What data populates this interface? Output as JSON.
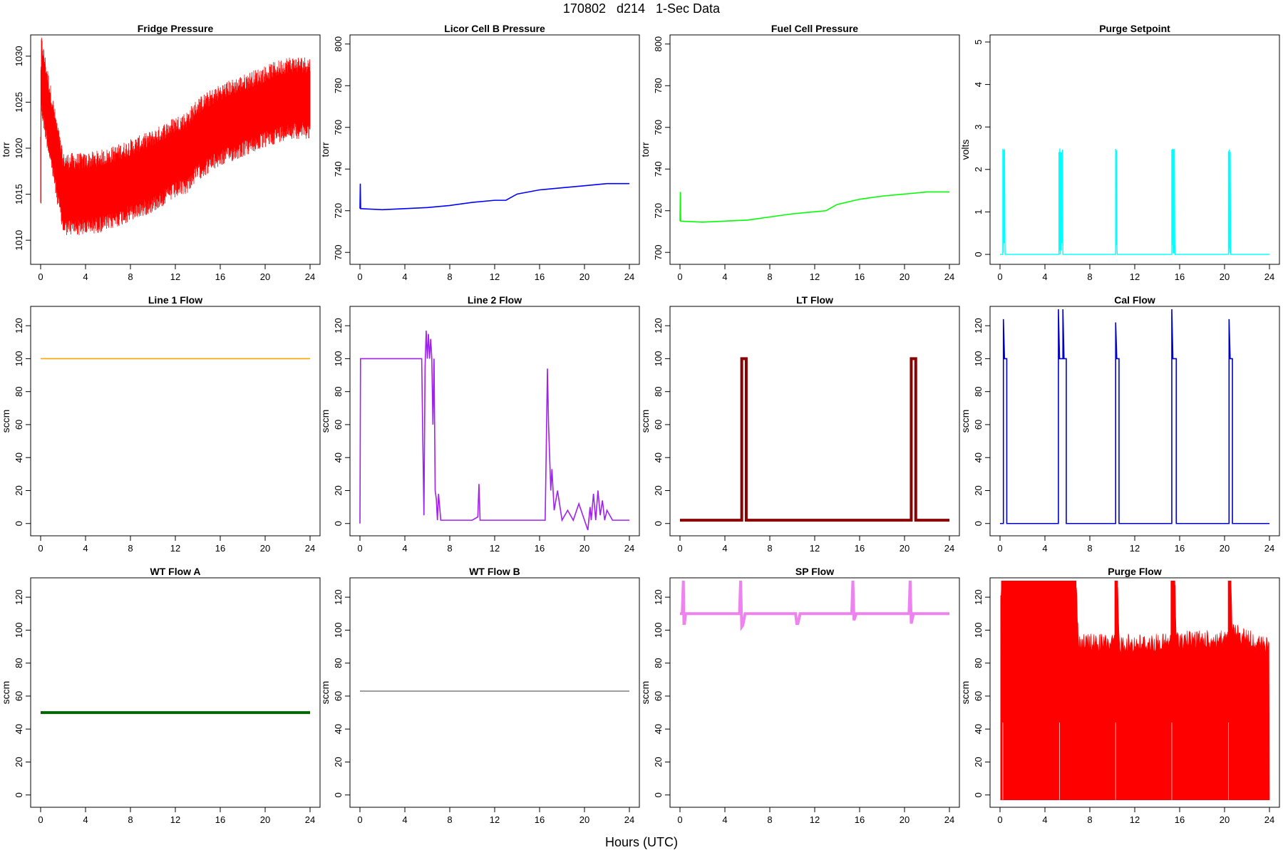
{
  "page": {
    "title": "170802   d214   1-Sec Data",
    "xlabel": "Hours (UTC)"
  },
  "chart_data": [
    {
      "type": "line",
      "title": "Fridge Pressure",
      "ylabel": "torr",
      "color": "#ff0000",
      "xlim": [
        0,
        24
      ],
      "ylim": [
        1008,
        1032
      ],
      "xticks": [
        0,
        4,
        8,
        12,
        16,
        20,
        24
      ],
      "yticks": [
        1010,
        1015,
        1020,
        1025,
        1030
      ],
      "style": "noisy",
      "series": [
        {
          "x": [
            0,
            0.05,
            2,
            4,
            6,
            8,
            10,
            12,
            13,
            14,
            16,
            18,
            20,
            22,
            24
          ],
          "y": [
            1018,
            1028,
            1015,
            1015,
            1015.5,
            1016.5,
            1017.5,
            1019,
            1019.5,
            1021,
            1022.5,
            1023.5,
            1024.5,
            1025.5,
            1025.5
          ]
        }
      ],
      "band": [
        -4.5,
        4.5
      ]
    },
    {
      "type": "line",
      "title": "Licor Cell B Pressure",
      "ylabel": "torr",
      "color": "#0000ff",
      "xlim": [
        0,
        24
      ],
      "ylim": [
        697,
        803
      ],
      "xticks": [
        0,
        4,
        8,
        12,
        16,
        20,
        24
      ],
      "yticks": [
        700,
        720,
        740,
        760,
        780,
        800
      ],
      "style": "line",
      "series": [
        {
          "x": [
            0,
            0.03,
            0.06,
            2,
            4,
            6,
            8,
            10,
            12,
            13,
            14,
            16,
            18,
            20,
            22,
            24
          ],
          "y": [
            721,
            733,
            721,
            720.5,
            721,
            721.5,
            722.5,
            724,
            725,
            725,
            728,
            730,
            731,
            732,
            733,
            733
          ]
        }
      ]
    },
    {
      "type": "line",
      "title": "Fuel Cell Pressure",
      "ylabel": "torr",
      "color": "#00ff00",
      "xlim": [
        0,
        24
      ],
      "ylim": [
        697,
        803
      ],
      "xticks": [
        0,
        4,
        8,
        12,
        16,
        20,
        24
      ],
      "yticks": [
        700,
        720,
        740,
        760,
        780,
        800
      ],
      "style": "line",
      "series": [
        {
          "x": [
            0,
            0.03,
            0.06,
            2,
            4,
            6,
            8,
            10,
            12,
            13,
            14,
            16,
            18,
            20,
            22,
            24
          ],
          "y": [
            715,
            729,
            715,
            714.5,
            715,
            715.5,
            717,
            718.5,
            719.5,
            720,
            723,
            725.5,
            727,
            728,
            729,
            729
          ]
        }
      ]
    },
    {
      "type": "line",
      "title": "Purge Setpoint",
      "ylabel": "volts",
      "color": "#00ffff",
      "xlim": [
        0,
        24
      ],
      "ylim": [
        -0.1,
        5.1
      ],
      "xticks": [
        0,
        4,
        8,
        12,
        16,
        20,
        24
      ],
      "yticks": [
        0,
        1,
        2,
        3,
        4,
        5
      ],
      "style": "pulses",
      "baseline": 0,
      "high": 2.5,
      "pulses": [
        [
          0.25,
          0.45
        ],
        [
          5.25,
          5.6
        ],
        [
          10.3,
          10.45
        ],
        [
          15.3,
          15.6
        ],
        [
          20.35,
          20.55
        ]
      ]
    },
    {
      "type": "line",
      "title": "Line 1 Flow",
      "ylabel": "sccm",
      "color": "#ffa500",
      "xlim": [
        0,
        24
      ],
      "ylim": [
        -4,
        130
      ],
      "xticks": [
        0,
        4,
        8,
        12,
        16,
        20,
        24
      ],
      "yticks": [
        0,
        20,
        40,
        60,
        80,
        100,
        120
      ],
      "style": "line",
      "series": [
        {
          "x": [
            0,
            24
          ],
          "y": [
            100,
            100
          ]
        }
      ]
    },
    {
      "type": "line",
      "title": "Line 2 Flow",
      "ylabel": "sccm",
      "color": "#a020f0",
      "xlim": [
        0,
        24
      ],
      "ylim": [
        -4,
        130
      ],
      "xticks": [
        0,
        4,
        8,
        12,
        16,
        20,
        24
      ],
      "yticks": [
        0,
        20,
        40,
        60,
        80,
        100,
        120
      ],
      "style": "line",
      "series": [
        {
          "x": [
            0,
            0.05,
            0.1,
            5.5,
            5.6,
            5.7,
            5.8,
            5.9,
            6.0,
            6.1,
            6.2,
            6.3,
            6.4,
            6.5,
            6.6,
            6.7,
            6.8,
            6.9,
            7.0,
            7.2,
            8,
            10,
            10.5,
            10.6,
            10.7,
            11,
            12,
            14,
            16,
            16.5,
            16.7,
            16.8,
            16.9,
            17.0,
            17.1,
            17.3,
            17.6,
            18,
            18.5,
            19,
            19.5,
            20,
            20.3,
            20.5,
            20.6,
            20.8,
            21,
            21.2,
            21.4,
            21.6,
            21.8,
            22,
            22.5,
            23,
            24
          ],
          "y": [
            0,
            100,
            100,
            100,
            50,
            5,
            95,
            117,
            100,
            115,
            100,
            112,
            100,
            60,
            100,
            20,
            15,
            2,
            18,
            2,
            2,
            2,
            4,
            24,
            2,
            2,
            2,
            2,
            2,
            2,
            94,
            60,
            40,
            20,
            33,
            8,
            20,
            2,
            8,
            2,
            12,
            2,
            -4,
            10,
            2,
            18,
            2,
            20,
            5,
            14,
            2,
            8,
            2,
            2,
            2
          ]
        }
      ]
    },
    {
      "type": "line",
      "title": "LT Flow",
      "ylabel": "sccm",
      "color": "#8b0000",
      "xlim": [
        0,
        24
      ],
      "ylim": [
        -4,
        130
      ],
      "xticks": [
        0,
        4,
        8,
        12,
        16,
        20,
        24
      ],
      "yticks": [
        0,
        20,
        40,
        60,
        80,
        100,
        120
      ],
      "style": "thick",
      "series": [
        {
          "x": [
            0,
            5.5,
            5.5,
            5.9,
            5.9,
            20.6,
            20.6,
            21.0,
            21.0,
            24
          ],
          "y": [
            2,
            2,
            100,
            100,
            2,
            2,
            100,
            100,
            2,
            2
          ]
        }
      ]
    },
    {
      "type": "line",
      "title": "Cal Flow",
      "ylabel": "sccm",
      "color": "#0000cd",
      "xlim": [
        0,
        24
      ],
      "ylim": [
        -4,
        130
      ],
      "xticks": [
        0,
        4,
        8,
        12,
        16,
        20,
        24
      ],
      "yticks": [
        0,
        20,
        40,
        60,
        80,
        100,
        120
      ],
      "style": "line",
      "series": [
        {
          "x": [
            0,
            0.3,
            0.3,
            0.4,
            0.4,
            0.6,
            0.6,
            5.2,
            5.2,
            5.3,
            5.3,
            5.6,
            5.6,
            5.7,
            5.7,
            5.9,
            5.9,
            10.3,
            10.3,
            10.4,
            10.4,
            10.6,
            10.6,
            15.3,
            15.3,
            15.4,
            15.4,
            15.7,
            15.7,
            20.4,
            20.4,
            20.5,
            20.5,
            20.7,
            20.7,
            24
          ],
          "y": [
            0,
            0,
            124,
            100,
            100,
            100,
            0,
            0,
            130,
            100,
            100,
            100,
            130,
            100,
            100,
            100,
            0,
            0,
            122,
            100,
            100,
            100,
            0,
            0,
            130,
            100,
            100,
            100,
            0,
            0,
            124,
            100,
            100,
            100,
            0,
            0
          ]
        }
      ]
    },
    {
      "type": "line",
      "title": "WT Flow A",
      "ylabel": "sccm",
      "color": "#006400",
      "xlim": [
        0,
        24
      ],
      "ylim": [
        -4,
        130
      ],
      "xticks": [
        0,
        4,
        8,
        12,
        16,
        20,
        24
      ],
      "yticks": [
        0,
        20,
        40,
        60,
        80,
        100,
        120
      ],
      "style": "thick",
      "series": [
        {
          "x": [
            0,
            24
          ],
          "y": [
            50,
            50
          ]
        }
      ]
    },
    {
      "type": "line",
      "title": "WT Flow B",
      "ylabel": "sccm",
      "color": "#808080",
      "xlim": [
        0,
        24
      ],
      "ylim": [
        -4,
        130
      ],
      "xticks": [
        0,
        4,
        8,
        12,
        16,
        20,
        24
      ],
      "yticks": [
        0,
        20,
        40,
        60,
        80,
        100,
        120
      ],
      "style": "line",
      "series": [
        {
          "x": [
            0,
            24
          ],
          "y": [
            63,
            63
          ]
        }
      ]
    },
    {
      "type": "line",
      "title": "SP Flow",
      "ylabel": "sccm",
      "color": "#ee82ee",
      "xlim": [
        0,
        24
      ],
      "ylim": [
        -4,
        130
      ],
      "xticks": [
        0,
        4,
        8,
        12,
        16,
        20,
        24
      ],
      "yticks": [
        0,
        20,
        40,
        60,
        80,
        100,
        120
      ],
      "style": "thick",
      "series": [
        {
          "x": [
            0,
            0.2,
            0.3,
            0.35,
            0.4,
            0.5,
            5.3,
            5.4,
            5.5,
            5.6,
            5.8,
            10.3,
            10.4,
            10.5,
            10.7,
            15.3,
            15.4,
            15.5,
            15.7,
            20.4,
            20.5,
            20.6,
            20.8,
            24
          ],
          "y": [
            110,
            110,
            130,
            104,
            104,
            110,
            110,
            130,
            102,
            103,
            110,
            110,
            104,
            104,
            110,
            110,
            130,
            106,
            110,
            110,
            130,
            104,
            110,
            110
          ]
        }
      ]
    },
    {
      "type": "line",
      "title": "Purge Flow",
      "ylabel": "sccm",
      "color": "#ff0000",
      "xlim": [
        0,
        24
      ],
      "ylim": [
        -4,
        130
      ],
      "xticks": [
        0,
        4,
        8,
        12,
        16,
        20,
        24
      ],
      "yticks": [
        0,
        20,
        40,
        60,
        80,
        100,
        120
      ],
      "style": "fill",
      "series": [
        {
          "x": [
            0,
            0.1,
            6.8,
            7.0,
            10.2,
            10.5,
            10.6,
            15.2,
            15.6,
            15.7,
            20.3,
            20.6,
            20.7,
            24
          ],
          "y": [
            115,
            130,
            130,
            98,
            98,
            130,
            98,
            98,
            130,
            100,
            100,
            130,
            105,
            95
          ]
        }
      ]
    }
  ]
}
